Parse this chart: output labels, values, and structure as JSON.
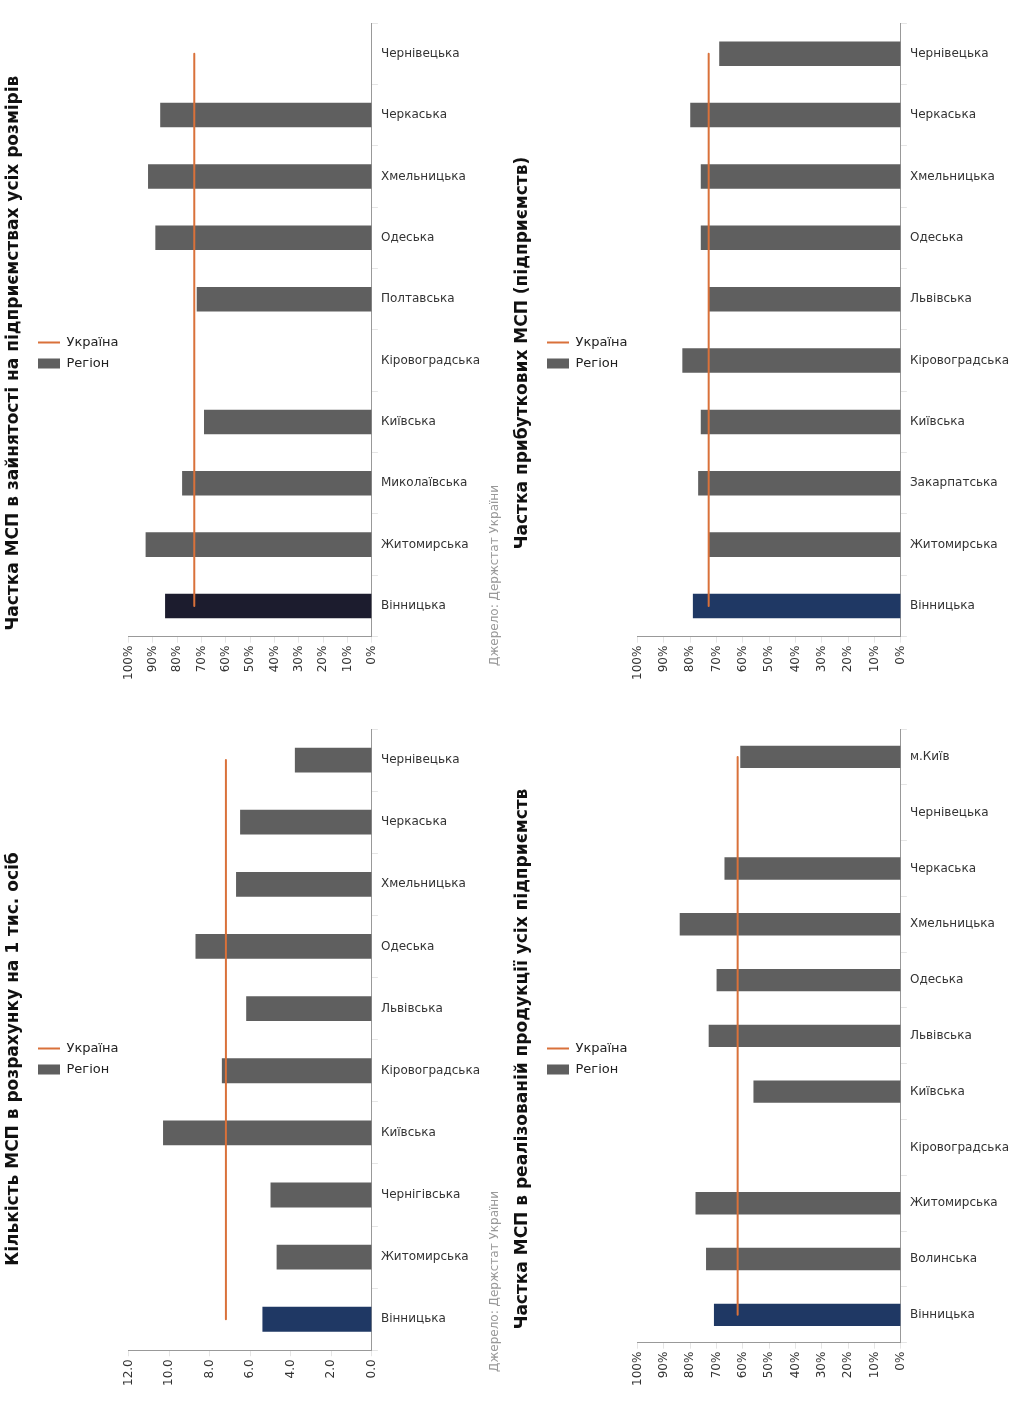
{
  "chart_data": [
    {
      "type": "bar",
      "orientation": "horizontal",
      "title": "Частка МСП в зайнятості на підприємствах усіх розмірів",
      "categories": [
        "Чернівецька",
        "Черкаська",
        "Хмельницька",
        "Одеська",
        "Полтавська",
        "Кіровоградська",
        "Київська",
        "Миколаївська",
        "Житомирська",
        "Вінницька"
      ],
      "series": [
        {
          "name": "Регіон",
          "colors": [
            "#5f5f5f",
            "#5f5f5f",
            "#5f5f5f",
            "#5f5f5f",
            "#5f5f5f",
            "#5f5f5f",
            "#5f5f5f",
            "#5f5f5f",
            "#5f5f5f",
            "#1c1c2e"
          ],
          "values": [
            null,
            87,
            92,
            89,
            72,
            null,
            69,
            78,
            93,
            85
          ]
        },
        {
          "name": "Україна",
          "type": "line",
          "color": "#d9713a",
          "values": [
            73,
            73,
            73,
            73,
            73,
            73,
            73,
            73,
            73,
            73
          ]
        }
      ],
      "xlim": [
        100,
        0
      ],
      "xticks": [
        {
          "value": 100,
          "label": "100%"
        },
        {
          "value": 90,
          "label": "90%"
        },
        {
          "value": 80,
          "label": "80%"
        },
        {
          "value": 70,
          "label": "70%"
        },
        {
          "value": 60,
          "label": "60%"
        },
        {
          "value": 50,
          "label": "50%"
        },
        {
          "value": 40,
          "label": "40%"
        },
        {
          "value": 30,
          "label": "30%"
        },
        {
          "value": 20,
          "label": "20%"
        },
        {
          "value": 10,
          "label": "10%"
        },
        {
          "value": 0,
          "label": "0%"
        }
      ],
      "legend": "left",
      "annotations": [
        "Джерело: Держстат України"
      ]
    },
    {
      "type": "bar",
      "orientation": "horizontal",
      "title": "Частка прибуткових МСП (підприємств)",
      "categories": [
        "Чернівецька",
        "Черкаська",
        "Хмельницька",
        "Одеська",
        "Львівська",
        "Кіровоградська",
        "Київська",
        "Закарпатська",
        "Житомирська",
        "Вінницька"
      ],
      "series": [
        {
          "name": "Регіон",
          "colors": [
            "#5f5f5f",
            "#5f5f5f",
            "#5f5f5f",
            "#5f5f5f",
            "#5f5f5f",
            "#5f5f5f",
            "#5f5f5f",
            "#5f5f5f",
            "#5f5f5f",
            "#1f3864"
          ],
          "values": [
            69,
            80,
            76,
            76,
            73,
            83,
            76,
            77,
            73,
            79
          ]
        },
        {
          "name": "Україна",
          "type": "line",
          "color": "#d9713a",
          "values": [
            73,
            73,
            73,
            73,
            73,
            73,
            73,
            73,
            73,
            73
          ]
        }
      ],
      "xlim": [
        100,
        0
      ],
      "xticks": [
        {
          "value": 100,
          "label": "100%"
        },
        {
          "value": 90,
          "label": "90%"
        },
        {
          "value": 80,
          "label": "80%"
        },
        {
          "value": 70,
          "label": "70%"
        },
        {
          "value": 60,
          "label": "60%"
        },
        {
          "value": 50,
          "label": "50%"
        },
        {
          "value": 40,
          "label": "40%"
        },
        {
          "value": 30,
          "label": "30%"
        },
        {
          "value": 20,
          "label": "20%"
        },
        {
          "value": 10,
          "label": "10%"
        },
        {
          "value": 0,
          "label": "0%"
        }
      ],
      "legend": "left"
    },
    {
      "type": "bar",
      "orientation": "horizontal",
      "title": "Кількість МСП в розрахунку на 1 тис. осіб",
      "categories": [
        "Чернівецька",
        "Черкаська",
        "Хмельницька",
        "Одеська",
        "Львівська",
        "Кіровоградська",
        "Київська",
        "Чернігівська",
        "Житомирська",
        "Вінницька"
      ],
      "series": [
        {
          "name": "Регіон",
          "colors": [
            "#5f5f5f",
            "#5f5f5f",
            "#5f5f5f",
            "#5f5f5f",
            "#5f5f5f",
            "#5f5f5f",
            "#5f5f5f",
            "#5f5f5f",
            "#5f5f5f",
            "#1f3864"
          ],
          "values": [
            3.8,
            6.5,
            6.7,
            8.7,
            6.2,
            7.4,
            10.3,
            5.0,
            4.7,
            5.4
          ]
        },
        {
          "name": "Україна",
          "type": "line",
          "color": "#d9713a",
          "values": [
            7.2,
            7.2,
            7.2,
            7.2,
            7.2,
            7.2,
            7.2,
            7.2,
            7.2,
            7.2
          ]
        }
      ],
      "xlim": [
        12,
        0
      ],
      "xticks": [
        {
          "value": 12,
          "label": "12.0"
        },
        {
          "value": 10,
          "label": "10.0"
        },
        {
          "value": 8,
          "label": "8.0"
        },
        {
          "value": 6,
          "label": "6.0"
        },
        {
          "value": 4,
          "label": "4.0"
        },
        {
          "value": 2,
          "label": "2.0"
        },
        {
          "value": 0,
          "label": "0.0"
        }
      ],
      "legend": "left",
      "annotations": [
        "Джерело: Держстат України"
      ]
    },
    {
      "type": "bar",
      "orientation": "horizontal",
      "title": "Частка МСП в реалізованій продукції усіх підприємств",
      "categories": [
        "м.Київ",
        "Чернівецька",
        "Черкаська",
        "Хмельницька",
        "Одеська",
        "Львівська",
        "Київська",
        "Кіровоградська",
        "Житомирська",
        "Волинська",
        "Вінницька"
      ],
      "series": [
        {
          "name": "Регіон",
          "colors": [
            "#5f5f5f",
            "#5f5f5f",
            "#5f5f5f",
            "#5f5f5f",
            "#5f5f5f",
            "#5f5f5f",
            "#5f5f5f",
            "#5f5f5f",
            "#5f5f5f",
            "#5f5f5f",
            "#1f3864"
          ],
          "values": [
            61,
            null,
            67,
            84,
            70,
            73,
            56,
            null,
            78,
            74,
            71
          ]
        },
        {
          "name": "Україна",
          "type": "line",
          "color": "#d9713a",
          "values": [
            62,
            62,
            62,
            62,
            62,
            62,
            62,
            62,
            62,
            62,
            62
          ]
        }
      ],
      "xlim": [
        100,
        0
      ],
      "xticks": [
        {
          "value": 100,
          "label": "100%"
        },
        {
          "value": 90,
          "label": "90%"
        },
        {
          "value": 80,
          "label": "80%"
        },
        {
          "value": 70,
          "label": "70%"
        },
        {
          "value": 60,
          "label": "60%"
        },
        {
          "value": 50,
          "label": "50%"
        },
        {
          "value": 40,
          "label": "40%"
        },
        {
          "value": 30,
          "label": "30%"
        },
        {
          "value": 20,
          "label": "20%"
        },
        {
          "value": 10,
          "label": "10%"
        },
        {
          "value": 0,
          "label": "0%"
        }
      ],
      "legend": "left"
    }
  ]
}
